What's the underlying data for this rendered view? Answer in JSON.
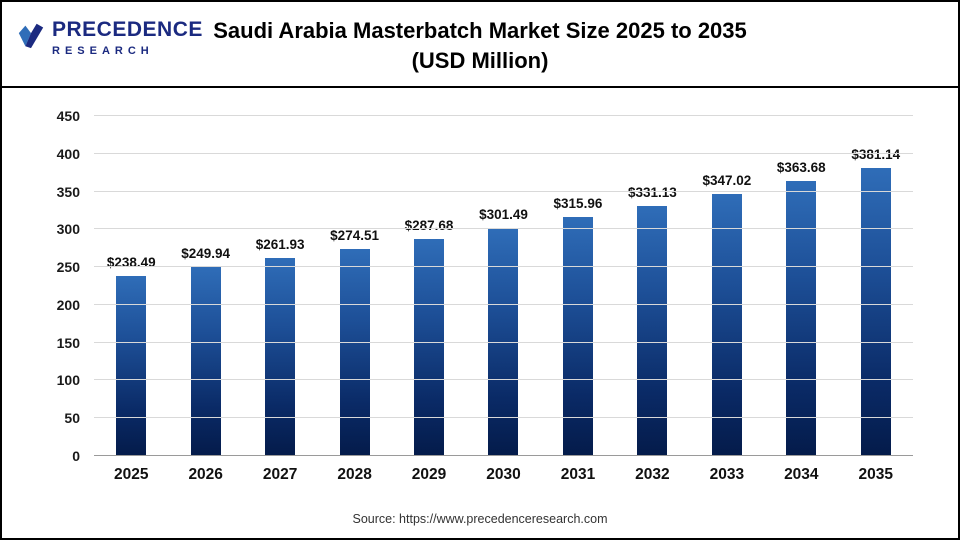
{
  "header": {
    "logo_line1": "PRECEDENCE",
    "logo_line2": "RESEARCH",
    "title_line1": "Saudi Arabia Masterbatch Market Size 2025 to 2035",
    "title_line2": "(USD Million)"
  },
  "chart_data": {
    "type": "bar",
    "title": "Saudi Arabia Masterbatch Market Size 2025 to 2035 (USD Million)",
    "categories": [
      "2025",
      "2026",
      "2027",
      "2028",
      "2029",
      "2030",
      "2031",
      "2032",
      "2033",
      "2034",
      "2035"
    ],
    "values": [
      238.49,
      249.94,
      261.93,
      274.51,
      287.68,
      301.49,
      315.96,
      331.13,
      347.02,
      363.68,
      381.14
    ],
    "value_labels": [
      "$238.49",
      "$249.94",
      "$261.93",
      "$274.51",
      "$287.68",
      "$301.49",
      "$315.96",
      "$331.13",
      "$347.02",
      "$363.68",
      "$381.14"
    ],
    "yticks": [
      0,
      50,
      100,
      150,
      200,
      250,
      300,
      350,
      400,
      450
    ],
    "ylim": [
      0,
      450
    ],
    "xlabel": "",
    "ylabel": "",
    "grid": true,
    "legend": false,
    "bar_color_top": "#2f6db8",
    "bar_color_bottom": "#041b4a"
  },
  "footer": {
    "source": "Source: https://www.precedenceresearch.com"
  }
}
